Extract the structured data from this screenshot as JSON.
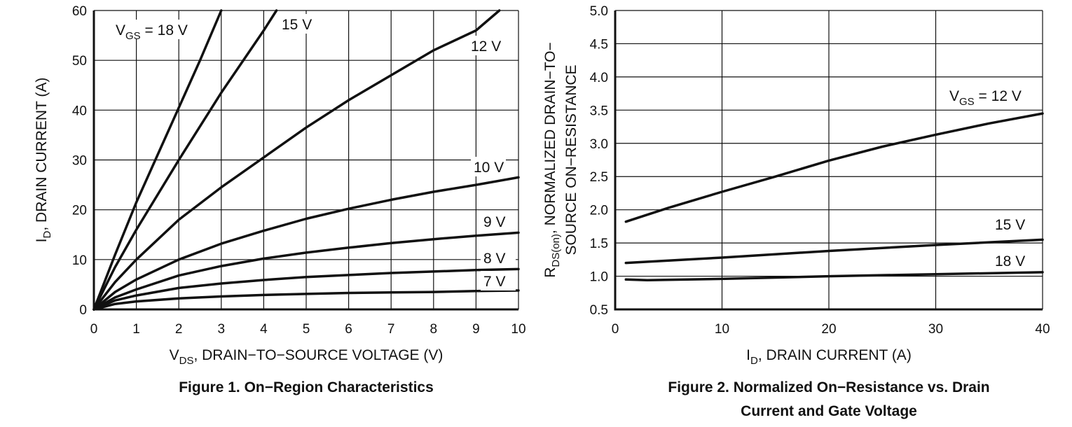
{
  "chart_data": [
    {
      "type": "line",
      "caption": "Figure 1. On−Region Characteristics",
      "xlabel": {
        "main": "V",
        "sub": "DS",
        "rest": ", DRAIN−TO−SOURCE VOLTAGE (V)"
      },
      "ylabel": {
        "main": "I",
        "sub": "D",
        "rest": ", DRAIN CURRENT (A)"
      },
      "xlim": [
        0,
        10
      ],
      "ylim": [
        0,
        60
      ],
      "grid": true,
      "xticks": [
        0,
        1,
        2,
        3,
        4,
        5,
        6,
        7,
        8,
        9,
        10
      ],
      "yticks": [
        0,
        10,
        20,
        30,
        40,
        50,
        60
      ],
      "series": [
        {
          "name": "V_GS = 18 V",
          "label": {
            "main": "V",
            "sub": "GS",
            "rest": " = 18 V"
          },
          "points": [
            [
              0,
              0
            ],
            [
              0.5,
              11
            ],
            [
              1,
              21.5
            ],
            [
              1.5,
              31
            ],
            [
              2,
              40.5
            ],
            [
              2.5,
              50
            ],
            [
              3,
              60
            ]
          ]
        },
        {
          "name": "15 V",
          "label": {
            "main": "15 V"
          },
          "points": [
            [
              0,
              0
            ],
            [
              0.5,
              8.5
            ],
            [
              1,
              16
            ],
            [
              2,
              30
            ],
            [
              3,
              43.5
            ],
            [
              4,
              56
            ],
            [
              4.3,
              60
            ]
          ]
        },
        {
          "name": "12 V",
          "label": {
            "main": "12 V"
          },
          "points": [
            [
              0,
              0
            ],
            [
              0.5,
              5.5
            ],
            [
              1,
              10
            ],
            [
              2,
              18
            ],
            [
              3,
              24.5
            ],
            [
              4,
              30.5
            ],
            [
              5,
              36.5
            ],
            [
              6,
              42
            ],
            [
              7,
              47
            ],
            [
              8,
              52
            ],
            [
              9,
              56
            ],
            [
              9.55,
              60
            ]
          ]
        },
        {
          "name": "10 V",
          "label": {
            "main": "10 V"
          },
          "points": [
            [
              0,
              0
            ],
            [
              0.5,
              3.5
            ],
            [
              1,
              6
            ],
            [
              2,
              10
            ],
            [
              3,
              13.2
            ],
            [
              4,
              15.8
            ],
            [
              5,
              18.2
            ],
            [
              6,
              20.2
            ],
            [
              7,
              22
            ],
            [
              8,
              23.6
            ],
            [
              9,
              25
            ],
            [
              10,
              26.5
            ]
          ]
        },
        {
          "name": "9 V",
          "label": {
            "main": "9 V"
          },
          "points": [
            [
              0,
              0
            ],
            [
              0.5,
              2.4
            ],
            [
              1,
              4
            ],
            [
              2,
              6.8
            ],
            [
              3,
              8.7
            ],
            [
              4,
              10.2
            ],
            [
              5,
              11.4
            ],
            [
              6,
              12.4
            ],
            [
              7,
              13.3
            ],
            [
              8,
              14.1
            ],
            [
              9,
              14.8
            ],
            [
              10,
              15.4
            ]
          ]
        },
        {
          "name": "8 V",
          "label": {
            "main": "8 V"
          },
          "points": [
            [
              0,
              0
            ],
            [
              0.5,
              1.8
            ],
            [
              1,
              2.8
            ],
            [
              2,
              4.3
            ],
            [
              3,
              5.2
            ],
            [
              4,
              5.9
            ],
            [
              5,
              6.5
            ],
            [
              6,
              6.9
            ],
            [
              7,
              7.3
            ],
            [
              8,
              7.6
            ],
            [
              9,
              7.9
            ],
            [
              10,
              8.1
            ]
          ]
        },
        {
          "name": "7 V",
          "label": {
            "main": "7 V"
          },
          "points": [
            [
              0,
              0
            ],
            [
              0.5,
              1.1
            ],
            [
              1,
              1.6
            ],
            [
              2,
              2.2
            ],
            [
              3,
              2.6
            ],
            [
              4,
              2.9
            ],
            [
              5,
              3.1
            ],
            [
              6,
              3.3
            ],
            [
              7,
              3.4
            ],
            [
              8,
              3.5
            ],
            [
              9,
              3.7
            ],
            [
              10,
              3.8
            ]
          ]
        }
      ]
    },
    {
      "type": "line",
      "caption": "Figure 2. Normalized On−Resistance vs. Drain",
      "caption2": "Current and Gate Voltage",
      "xlabel": {
        "main": "I",
        "sub": "D",
        "rest": ", DRAIN CURRENT (A)"
      },
      "ylabel": {
        "main": "R",
        "sub": "DS(on)",
        "rest": ", NORMALIZED DRAIN−TO−",
        "line2": "SOURCE ON−RESISTANCE"
      },
      "xlim": [
        0,
        40
      ],
      "ylim": [
        0.5,
        5.0
      ],
      "grid": true,
      "xticks": [
        0,
        10,
        20,
        30,
        40
      ],
      "yticks": [
        "0.5",
        "1.0",
        "1.5",
        "2.0",
        "2.5",
        "3.0",
        "3.5",
        "4.0",
        "4.5",
        "5.0"
      ],
      "series": [
        {
          "name": "V_GS = 12 V",
          "label": {
            "main": "V",
            "sub": "GS",
            "rest": " = 12 V"
          },
          "points": [
            [
              1,
              1.82
            ],
            [
              5,
              2.03
            ],
            [
              10,
              2.27
            ],
            [
              15,
              2.5
            ],
            [
              20,
              2.74
            ],
            [
              25,
              2.95
            ],
            [
              30,
              3.13
            ],
            [
              35,
              3.3
            ],
            [
              40,
              3.45
            ]
          ]
        },
        {
          "name": "15 V",
          "label": {
            "main": "15 V"
          },
          "points": [
            [
              1,
              1.2
            ],
            [
              10,
              1.28
            ],
            [
              20,
              1.38
            ],
            [
              30,
              1.47
            ],
            [
              40,
              1.55
            ]
          ]
        },
        {
          "name": "18 V",
          "label": {
            "main": "18 V"
          },
          "points": [
            [
              1,
              0.95
            ],
            [
              3,
              0.94
            ],
            [
              10,
              0.96
            ],
            [
              20,
              1.0
            ],
            [
              30,
              1.03
            ],
            [
              40,
              1.06
            ]
          ]
        }
      ]
    }
  ]
}
